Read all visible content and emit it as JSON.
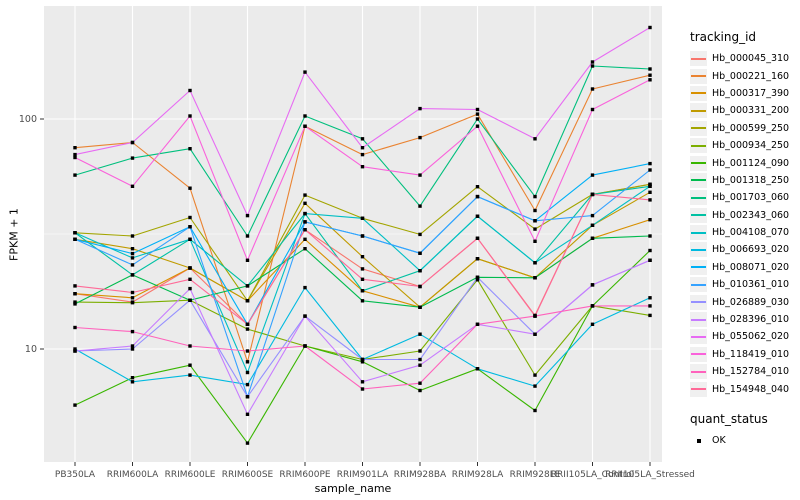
{
  "figure": {
    "y_axis": {
      "title": "FPKM + 1",
      "tick_labels": [
        "100",
        "10"
      ],
      "tick_values": [
        100,
        10
      ]
    },
    "x_axis": {
      "title": "sample_name"
    },
    "legend": {
      "tracking_title": "tracking_id",
      "quant_title": "quant_status",
      "quant_items": [
        {
          "label": "OK"
        }
      ]
    },
    "colors": {
      "panel_bg": "#EBEBEB",
      "grid": "#FFFFFF",
      "tick_text": "#4D4D4D",
      "tick_mark": "#333333",
      "marker": "#000000"
    }
  },
  "chart_data": {
    "type": "line",
    "title": "",
    "xlabel": "sample_name",
    "ylabel": "FPKM + 1",
    "y_scale": "log10",
    "ylim": [
      3.5,
      260
    ],
    "y_ticks": [
      10,
      100
    ],
    "grid": true,
    "legend_position": "right",
    "marker": {
      "shape": "square",
      "color": "#000000",
      "legend_title": "quant_status",
      "legend_label": "OK"
    },
    "categories": [
      "PB350LA",
      "RRIM600LA",
      "RRIM600LE",
      "RRIM600SE",
      "RRIM600PE",
      "RRIM901LA",
      "RRIM928BA",
      "RRIM928LA",
      "RRIM928LE",
      "RRII105LA_Control",
      "RRII105LA_Stressed"
    ],
    "series": [
      {
        "name": "Hb_000045_310",
        "color": "#F8766D",
        "values": [
          17.4,
          16,
          22.5,
          12.8,
          33,
          22.3,
          18.7,
          30.3,
          14,
          47,
          52
        ]
      },
      {
        "name": "Hb_000221_160",
        "color": "#EA8331",
        "values": [
          75,
          79,
          50,
          8.8,
          93,
          70,
          83,
          105,
          40,
          135,
          155
        ]
      },
      {
        "name": "Hb_000317_390",
        "color": "#D89000",
        "values": [
          17.4,
          16.7,
          22.5,
          16.2,
          30,
          17.9,
          15.2,
          24.7,
          20.4,
          30.3,
          36.5
        ]
      },
      {
        "name": "Hb_000331_200",
        "color": "#C09B00",
        "values": [
          30,
          27.3,
          22.5,
          16.2,
          43,
          25.2,
          15.2,
          24.7,
          20.4,
          34.5,
          48
        ]
      },
      {
        "name": "Hb_000599_250",
        "color": "#A3A500",
        "values": [
          32,
          31,
          37.3,
          16.2,
          46.7,
          37,
          31.5,
          50.8,
          33.2,
          47,
          52
        ]
      },
      {
        "name": "Hb_000934_250",
        "color": "#7CAE00",
        "values": [
          16,
          15.9,
          16.3,
          12.2,
          10.3,
          9,
          9.8,
          20,
          7.7,
          15.4,
          14
        ]
      },
      {
        "name": "Hb_001124_090",
        "color": "#39B600",
        "values": [
          5.7,
          7.5,
          8.5,
          3.9,
          10.3,
          8.8,
          6.6,
          8.2,
          5.4,
          15.4,
          26.8
        ]
      },
      {
        "name": "Hb_001318_250",
        "color": "#00BB4E",
        "values": [
          15.7,
          21,
          16.3,
          18.8,
          27.3,
          16.2,
          15.2,
          20.5,
          20.4,
          30.3,
          31
        ]
      },
      {
        "name": "Hb_001703_060",
        "color": "#00BF7D",
        "values": [
          57,
          67.6,
          74.3,
          31,
          103,
          82,
          41.8,
          100,
          46,
          170,
          165
        ]
      },
      {
        "name": "Hb_002343_060",
        "color": "#00C1A3",
        "values": [
          32,
          21,
          30,
          18.8,
          38.8,
          17.9,
          21.9,
          37.8,
          23.7,
          47,
          51
        ]
      },
      {
        "name": "Hb_004108_070",
        "color": "#00BFC4",
        "values": [
          32,
          24.9,
          30,
          7.9,
          38.8,
          37,
          21.9,
          37.8,
          23.7,
          34.5,
          51
        ]
      },
      {
        "name": "Hb_006693_020",
        "color": "#00BAE0",
        "values": [
          10,
          7.2,
          7.7,
          7,
          18.5,
          9,
          11.6,
          8.2,
          6.9,
          12.8,
          16.7
        ]
      },
      {
        "name": "Hb_008071_020",
        "color": "#00B0F6",
        "values": [
          30,
          26,
          34,
          12.8,
          35.7,
          31,
          26.1,
          46,
          36.1,
          57,
          64
        ]
      },
      {
        "name": "Hb_010361_010",
        "color": "#35A2FF",
        "values": [
          30,
          23.2,
          34,
          6.2,
          35.7,
          31,
          26.1,
          46,
          36.1,
          38,
          60
        ]
      },
      {
        "name": "Hb_026889_030",
        "color": "#9590FF",
        "values": [
          9.8,
          10,
          16.3,
          6.2,
          13.9,
          9,
          9,
          20.5,
          11.6,
          19,
          24.3
        ]
      },
      {
        "name": "Hb_028396_010",
        "color": "#C77CFF",
        "values": [
          9.8,
          10.3,
          18.3,
          5.2,
          13.9,
          7.2,
          8.5,
          12.8,
          11.6,
          19,
          24.3
        ]
      },
      {
        "name": "Hb_055062_020",
        "color": "#E76BF3",
        "values": [
          70,
          79,
          133,
          38,
          160,
          75,
          111,
          110,
          82,
          177,
          250
        ]
      },
      {
        "name": "Hb_118419_010",
        "color": "#FA62DB",
        "values": [
          68,
          51,
          103,
          24.3,
          93,
          62,
          57,
          93,
          29.4,
          110,
          148
        ]
      },
      {
        "name": "Hb_152784_010",
        "color": "#FF62BC",
        "values": [
          12.4,
          11.9,
          10.3,
          9.8,
          10.3,
          6.7,
          7.1,
          12.8,
          13.9,
          15.4,
          15.4
        ]
      },
      {
        "name": "Hb_154948_040",
        "color": "#FF6A98",
        "values": [
          18.8,
          17.6,
          20.1,
          12.8,
          33,
          20.1,
          18.7,
          30.3,
          13.9,
          47,
          44.5
        ]
      }
    ]
  }
}
